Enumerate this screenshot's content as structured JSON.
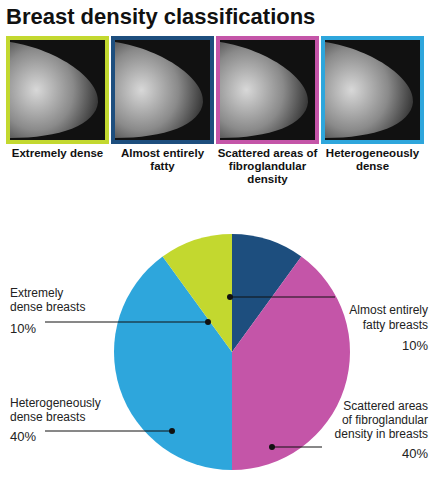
{
  "chart_data": {
    "type": "pie",
    "title": "Breast density classifications",
    "categories": [
      "Almost entirely fatty breasts",
      "Scattered areas of fibroglandular density in breasts",
      "Heterogeneously dense breasts",
      "Extremely dense breasts"
    ],
    "values": [
      10,
      40,
      40,
      10
    ],
    "value_labels": [
      "10%",
      "40%",
      "40%",
      "10%"
    ],
    "colors": [
      "#1d4e7e",
      "#c455a8",
      "#2ea6dc",
      "#c3d82f"
    ],
    "data_labels": true
  },
  "images": [
    {
      "caption": "Extremely dense",
      "color": "#c3d82f"
    },
    {
      "caption": "Almost entirely fatty",
      "color": "#1d4e7e"
    },
    {
      "caption": "Scattered areas of fibroglandular density",
      "color": "#c455a8"
    },
    {
      "caption": "Heterogeneously dense",
      "color": "#2ea6dc"
    }
  ]
}
